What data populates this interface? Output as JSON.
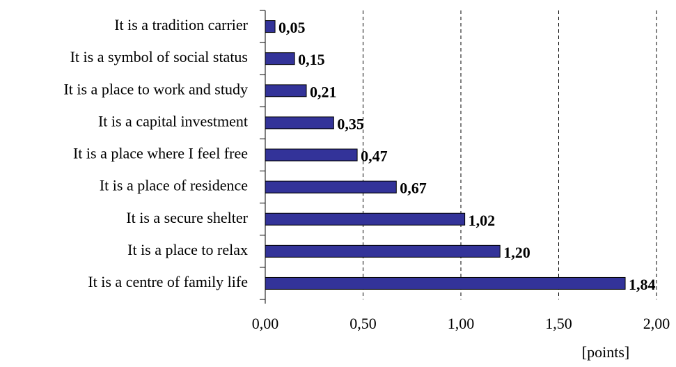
{
  "chart_data": {
    "type": "hbar",
    "categories": [
      "It is a tradition carrier",
      "It is a symbol of social status",
      "It is a place to work and study",
      "It is a capital investment",
      "It is a place where I feel free",
      "It is a place of residence",
      "It is a secure shelter",
      "It is a place to relax",
      "It is a centre of family life"
    ],
    "values": [
      0.05,
      0.15,
      0.21,
      0.35,
      0.47,
      0.67,
      1.02,
      1.2,
      1.84
    ],
    "value_labels": [
      "0,05",
      "0,15",
      "0,21",
      "0,35",
      "0,47",
      "0,67",
      "1,02",
      "1,20",
      "1,84"
    ],
    "color": "#333399",
    "xlabel": "[points]",
    "xlim": [
      0,
      2
    ],
    "xticks": [
      {
        "value": 0,
        "label": "0,00"
      },
      {
        "value": 0.5,
        "label": "0,50"
      },
      {
        "value": 1,
        "label": "1,00"
      },
      {
        "value": 1.5,
        "label": "1,50"
      },
      {
        "value": 2,
        "label": "2,00"
      }
    ],
    "grid": true
  }
}
